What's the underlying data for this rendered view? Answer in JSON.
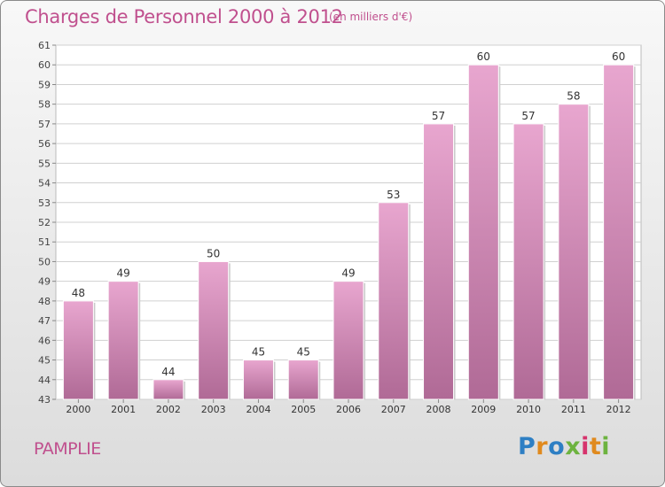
{
  "header": {
    "title": "Charges de Personnel 2000 à 2012",
    "subtitle": "(en milliers d'€)"
  },
  "footer": {
    "commune": "PAMPLIE",
    "logo_text": "Proxiti",
    "logo_letters": [
      "P",
      "r",
      "o",
      "x",
      "i",
      "t",
      "i"
    ]
  },
  "colors": {
    "bar_light": "#e8a6cf",
    "bar_dark": "#b06a96",
    "text": "#c0508e",
    "grid": "#d0d0d0"
  },
  "chart_data": {
    "type": "bar",
    "title": "Charges de Personnel 2000 à 2012",
    "subtitle": "(en milliers d'€)",
    "categories": [
      "2000",
      "2001",
      "2002",
      "2003",
      "2004",
      "2005",
      "2006",
      "2007",
      "2008",
      "2009",
      "2010",
      "2011",
      "2012"
    ],
    "values": [
      48,
      49,
      44,
      50,
      45,
      45,
      49,
      53,
      57,
      60,
      57,
      58,
      60
    ],
    "ylim": [
      43,
      61
    ],
    "yticks": [
      43,
      44,
      45,
      46,
      47,
      48,
      49,
      50,
      51,
      52,
      53,
      54,
      55,
      56,
      57,
      58,
      59,
      60,
      61
    ],
    "grid": true,
    "legend": "none"
  }
}
